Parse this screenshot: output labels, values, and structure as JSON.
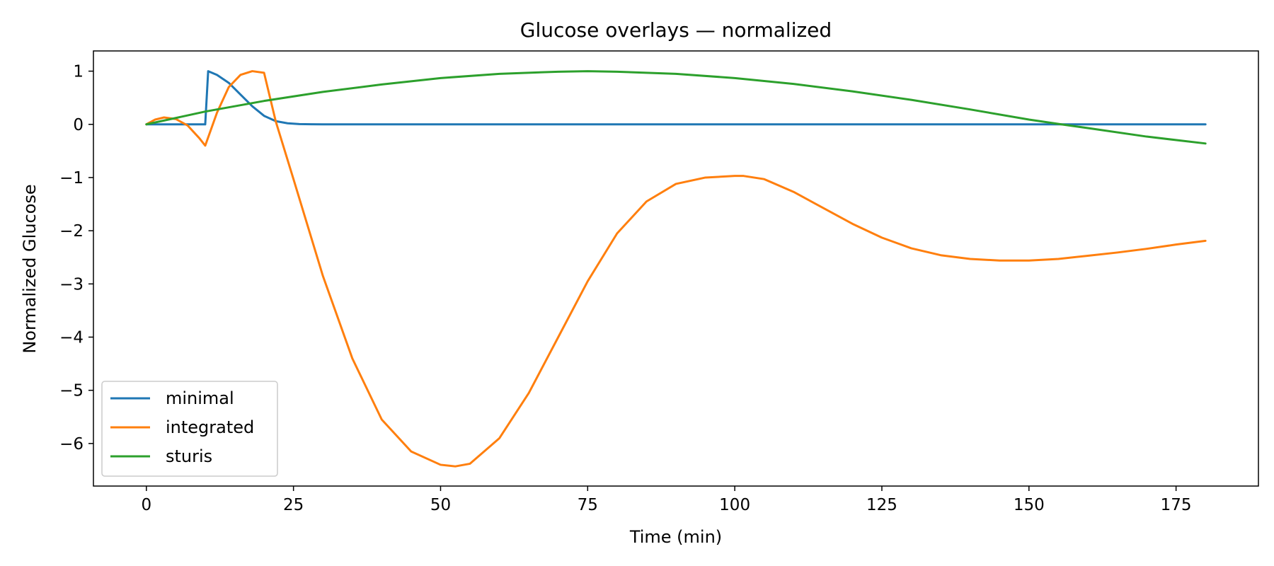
{
  "chart_data": {
    "type": "line",
    "title": "Glucose overlays — normalized",
    "xlabel": "Time (min)",
    "ylabel": "Normalized Glucose",
    "xlim": [
      -9,
      189
    ],
    "ylim": [
      -6.8,
      1.38
    ],
    "x_ticks": [
      0,
      25,
      50,
      75,
      100,
      125,
      150,
      175
    ],
    "x_tick_labels": [
      "0",
      "25",
      "50",
      "75",
      "100",
      "125",
      "150",
      "175"
    ],
    "y_ticks": [
      1,
      0,
      -1,
      -2,
      -3,
      -4,
      -5,
      -6
    ],
    "y_tick_labels": [
      "1",
      "0",
      "−1",
      "−2",
      "−3",
      "−4",
      "−5",
      "−6"
    ],
    "grid": false,
    "legend_position": "lower-left",
    "series": [
      {
        "name": "minimal",
        "color": "#1f77b4",
        "x": [
          0,
          10,
          10.5,
          12,
          14,
          16,
          18,
          20,
          22,
          24,
          26,
          28,
          30,
          40,
          60,
          80,
          100,
          120,
          140,
          160,
          180
        ],
        "y": [
          0,
          0,
          1.0,
          0.93,
          0.78,
          0.56,
          0.34,
          0.16,
          0.06,
          0.02,
          0.005,
          0.001,
          0,
          0,
          0,
          0,
          0,
          0,
          0,
          0,
          0
        ]
      },
      {
        "name": "integrated",
        "color": "#ff7f0e",
        "x": [
          0,
          1.5,
          3,
          5,
          7,
          9,
          10,
          12,
          14,
          16,
          18,
          20,
          22,
          25,
          30,
          35,
          40,
          45,
          50,
          52.5,
          55,
          60,
          65,
          70,
          75,
          80,
          85,
          90,
          95,
          100,
          101.5,
          105,
          110,
          115,
          120,
          125,
          130,
          135,
          140,
          145,
          150,
          155,
          160,
          165,
          170,
          175,
          180
        ],
        "y": [
          0,
          0.09,
          0.13,
          0.1,
          -0.02,
          -0.26,
          -0.4,
          0.22,
          0.7,
          0.93,
          1.0,
          0.97,
          0.05,
          -1.03,
          -2.85,
          -4.4,
          -5.55,
          -6.15,
          -6.4,
          -6.43,
          -6.38,
          -5.9,
          -5.05,
          -4.0,
          -2.95,
          -2.05,
          -1.45,
          -1.12,
          -1.0,
          -0.97,
          -0.97,
          -1.03,
          -1.27,
          -1.57,
          -1.87,
          -2.13,
          -2.33,
          -2.46,
          -2.53,
          -2.56,
          -2.56,
          -2.53,
          -2.47,
          -2.41,
          -2.34,
          -2.26,
          -2.19
        ]
      },
      {
        "name": "sturis",
        "color": "#2ca02c",
        "x": [
          0,
          10,
          20,
          30,
          40,
          50,
          60,
          70,
          75,
          80,
          90,
          100,
          110,
          120,
          130,
          140,
          150,
          155.5,
          160,
          170,
          180
        ],
        "y": [
          0,
          0.24,
          0.44,
          0.61,
          0.75,
          0.87,
          0.95,
          0.99,
          1.0,
          0.99,
          0.95,
          0.87,
          0.76,
          0.62,
          0.46,
          0.28,
          0.09,
          0.0,
          -0.07,
          -0.23,
          -0.36
        ]
      }
    ]
  }
}
